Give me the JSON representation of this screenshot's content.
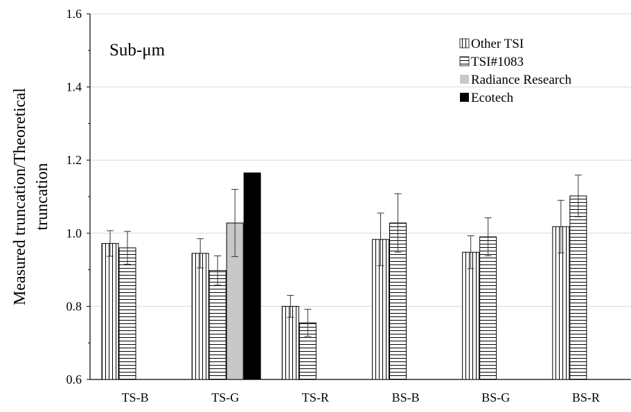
{
  "chart_data": {
    "type": "bar",
    "annotation": "Sub-μm",
    "ylabel_line1": "Measured truncation/Theoretical",
    "ylabel_line2": "truncation",
    "xlabel": "",
    "ylim": [
      0.6,
      1.6
    ],
    "yticks": [
      0.6,
      0.8,
      1.0,
      1.2,
      1.4,
      1.6
    ],
    "ytick_labels": [
      "0.6",
      "0.8",
      "1.0",
      "1.2",
      "1.4",
      "1.6"
    ],
    "grid": true,
    "legend_position": "top-right",
    "categories": [
      "TS-B",
      "TS-G",
      "TS-R",
      "BS-B",
      "BS-G",
      "BS-R"
    ],
    "series": [
      {
        "name": "Other TSI",
        "pattern": "vertical-stripes",
        "values": [
          0.972,
          0.945,
          0.8,
          0.983,
          0.948,
          1.018
        ],
        "errors": [
          0.035,
          0.04,
          0.03,
          0.072,
          0.045,
          0.072
        ]
      },
      {
        "name": "TSI#1083",
        "pattern": "horizontal-stripes",
        "values": [
          0.96,
          0.898,
          0.755,
          1.028,
          0.99,
          1.102
        ],
        "errors": [
          0.045,
          0.04,
          0.037,
          0.08,
          0.052,
          0.057
        ]
      },
      {
        "name": "Radiance Research",
        "pattern": "solid",
        "color": "#c8c8c8",
        "values": [
          null,
          1.028,
          null,
          null,
          null,
          null
        ],
        "errors": [
          null,
          0.092,
          null,
          null,
          null,
          null
        ]
      },
      {
        "name": "Ecotech",
        "pattern": "solid",
        "color": "#000000",
        "values": [
          null,
          1.165,
          null,
          null,
          null,
          null
        ],
        "errors": [
          null,
          null,
          null,
          null,
          null,
          null
        ]
      }
    ]
  }
}
